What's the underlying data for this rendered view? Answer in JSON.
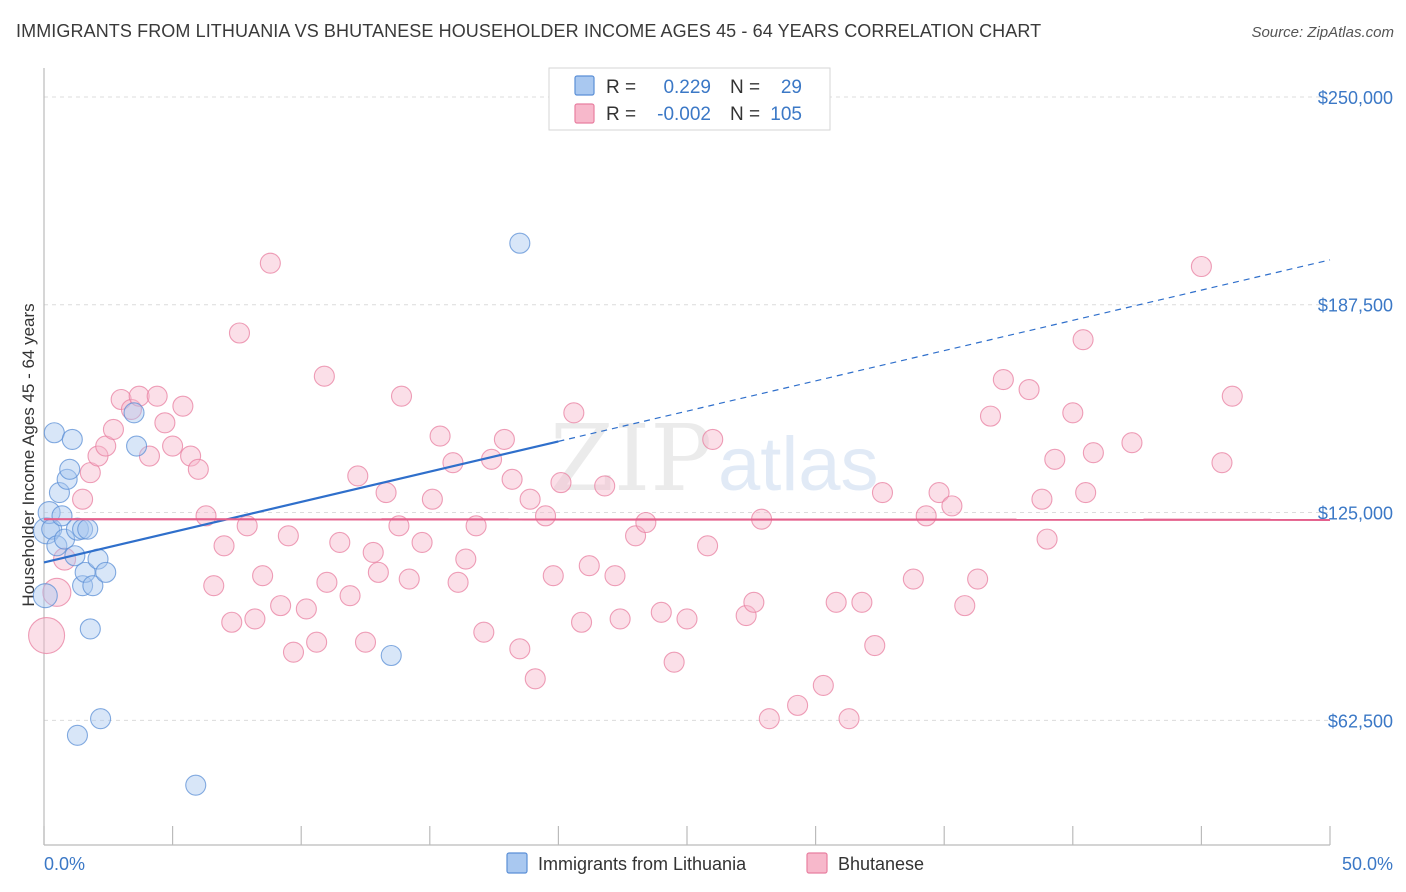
{
  "title": "IMMIGRANTS FROM LITHUANIA VS BHUTANESE HOUSEHOLDER INCOME AGES 45 - 64 YEARS CORRELATION CHART",
  "source": "Source: ZipAtlas.com",
  "watermark": {
    "zip": "ZIP",
    "atlas": "atlas"
  },
  "colors": {
    "lithuania_fill": "#a9c8f0",
    "lithuania_stroke": "#5b8fd6",
    "lithuania_line": "#2f6fcb",
    "bhutanese_fill": "#f7b8cb",
    "bhutanese_stroke": "#e87fa0",
    "bhutanese_line": "#e4608c",
    "axis_text": "#3b78c6"
  },
  "legend": {
    "rows": [
      {
        "r_label": "R =",
        "r_value": "0.229",
        "n_label": "N =",
        "n_value": "29"
      },
      {
        "r_label": "R =",
        "r_value": "-0.002",
        "n_label": "N =",
        "n_value": "105"
      }
    ]
  },
  "chart_data": {
    "type": "scatter",
    "title": "IMMIGRANTS FROM LITHUANIA VS BHUTANESE HOUSEHOLDER INCOME AGES 45 - 64 YEARS CORRELATION CHART",
    "xlabel": "",
    "ylabel": "Householder Income Ages 45 - 64 years",
    "xlim": [
      0,
      50
    ],
    "ylim": [
      25000,
      256000
    ],
    "x_tick_labels": [
      "0.0%",
      "50.0%"
    ],
    "y_ticks": [
      62500,
      125000,
      187500,
      250000
    ],
    "y_tick_labels": [
      "$62,500",
      "$125,000",
      "$187,500",
      "$250,000"
    ],
    "grid": true,
    "series": [
      {
        "name": "Immigrants from Lithuania",
        "r": 0.229,
        "n": 29,
        "trend": {
          "x0": 0,
          "y0": 110000,
          "x1": 50,
          "y1": 201000,
          "solid_until_x": 20
        },
        "points": [
          [
            0.1,
            119500,
            26
          ],
          [
            0.2,
            125000,
            22
          ],
          [
            0.3,
            120000,
            20
          ],
          [
            0.4,
            149000,
            20
          ],
          [
            0.5,
            115000,
            20
          ],
          [
            0.6,
            131000,
            20
          ],
          [
            0.7,
            124000,
            20
          ],
          [
            0.8,
            117000,
            20
          ],
          [
            0.9,
            135000,
            20
          ],
          [
            1.0,
            138000,
            20
          ],
          [
            1.1,
            147000,
            20
          ],
          [
            1.2,
            112000,
            20
          ],
          [
            1.3,
            120000,
            22
          ],
          [
            1.5,
            120000,
            20
          ],
          [
            1.5,
            103000,
            20
          ],
          [
            1.6,
            107000,
            20
          ],
          [
            1.7,
            120000,
            20
          ],
          [
            1.8,
            90000,
            20
          ],
          [
            1.9,
            103000,
            20
          ],
          [
            2.1,
            111000,
            20
          ],
          [
            2.2,
            63000,
            20
          ],
          [
            2.4,
            107000,
            20
          ],
          [
            1.3,
            58000,
            20
          ],
          [
            3.6,
            145000,
            20
          ],
          [
            3.5,
            155000,
            20
          ],
          [
            5.9,
            43000,
            20
          ],
          [
            13.5,
            82000,
            20
          ],
          [
            18.5,
            206000,
            20
          ],
          [
            0.05,
            100000,
            24
          ]
        ]
      },
      {
        "name": "Bhutanese",
        "r": -0.002,
        "n": 105,
        "trend": {
          "x0": 0,
          "y0": 123000,
          "x1": 50,
          "y1": 122800
        },
        "points": [
          [
            0.1,
            88000,
            36
          ],
          [
            0.5,
            101000,
            28
          ],
          [
            0.8,
            111000,
            22
          ],
          [
            1.5,
            129000,
            20
          ],
          [
            1.8,
            137000,
            20
          ],
          [
            2.1,
            142000,
            20
          ],
          [
            2.4,
            145000,
            20
          ],
          [
            2.7,
            150000,
            20
          ],
          [
            3.0,
            159000,
            20
          ],
          [
            3.4,
            156000,
            20
          ],
          [
            3.7,
            160000,
            20
          ],
          [
            4.1,
            142000,
            20
          ],
          [
            4.4,
            160000,
            20
          ],
          [
            4.7,
            152000,
            20
          ],
          [
            5.0,
            145000,
            20
          ],
          [
            5.4,
            157000,
            20
          ],
          [
            5.7,
            142000,
            20
          ],
          [
            6.0,
            138000,
            20
          ],
          [
            6.3,
            124000,
            20
          ],
          [
            6.6,
            103000,
            20
          ],
          [
            7.0,
            115000,
            20
          ],
          [
            7.3,
            92000,
            20
          ],
          [
            7.6,
            179000,
            20
          ],
          [
            7.9,
            121000,
            20
          ],
          [
            8.2,
            93000,
            20
          ],
          [
            8.5,
            106000,
            20
          ],
          [
            8.8,
            200000,
            20
          ],
          [
            9.2,
            97000,
            20
          ],
          [
            9.5,
            118000,
            20
          ],
          [
            9.7,
            83000,
            20
          ],
          [
            10.2,
            96000,
            20
          ],
          [
            10.6,
            86000,
            20
          ],
          [
            10.9,
            166000,
            20
          ],
          [
            11.0,
            104000,
            20
          ],
          [
            11.5,
            116000,
            20
          ],
          [
            11.9,
            100000,
            20
          ],
          [
            12.2,
            136000,
            20
          ],
          [
            12.5,
            86000,
            20
          ],
          [
            12.8,
            113000,
            20
          ],
          [
            13.0,
            107000,
            20
          ],
          [
            13.3,
            131000,
            20
          ],
          [
            13.8,
            121000,
            20
          ],
          [
            13.9,
            160000,
            20
          ],
          [
            14.2,
            105000,
            20
          ],
          [
            14.7,
            116000,
            20
          ],
          [
            15.1,
            129000,
            20
          ],
          [
            15.4,
            148000,
            20
          ],
          [
            15.9,
            140000,
            20
          ],
          [
            16.1,
            104000,
            20
          ],
          [
            16.4,
            111000,
            20
          ],
          [
            16.8,
            121000,
            20
          ],
          [
            17.1,
            89000,
            20
          ],
          [
            17.4,
            141000,
            20
          ],
          [
            17.9,
            147000,
            20
          ],
          [
            18.2,
            135000,
            20
          ],
          [
            18.5,
            84000,
            20
          ],
          [
            18.9,
            129000,
            20
          ],
          [
            19.1,
            75000,
            20
          ],
          [
            19.5,
            124000,
            20
          ],
          [
            19.8,
            106000,
            20
          ],
          [
            20.1,
            134000,
            20
          ],
          [
            20.6,
            155000,
            20
          ],
          [
            20.9,
            92000,
            20
          ],
          [
            21.2,
            109000,
            20
          ],
          [
            21.8,
            133000,
            20
          ],
          [
            22.2,
            106000,
            20
          ],
          [
            22.4,
            93000,
            20
          ],
          [
            23.0,
            118000,
            20
          ],
          [
            23.4,
            122000,
            20
          ],
          [
            24.0,
            95000,
            20
          ],
          [
            24.5,
            80000,
            20
          ],
          [
            25.0,
            93000,
            20
          ],
          [
            25.8,
            115000,
            20
          ],
          [
            27.3,
            94000,
            20
          ],
          [
            27.6,
            98000,
            20
          ],
          [
            27.9,
            123000,
            20
          ],
          [
            28.2,
            63000,
            20
          ],
          [
            29.3,
            67000,
            20
          ],
          [
            30.3,
            73000,
            20
          ],
          [
            30.8,
            98000,
            20
          ],
          [
            31.3,
            63000,
            20
          ],
          [
            31.8,
            98000,
            20
          ],
          [
            32.3,
            85000,
            20
          ],
          [
            32.6,
            131000,
            20
          ],
          [
            33.8,
            105000,
            20
          ],
          [
            34.3,
            124000,
            20
          ],
          [
            34.8,
            131000,
            20
          ],
          [
            35.3,
            127000,
            20
          ],
          [
            35.8,
            97000,
            20
          ],
          [
            36.3,
            105000,
            20
          ],
          [
            36.8,
            154000,
            20
          ],
          [
            37.3,
            165000,
            20
          ],
          [
            38.3,
            162000,
            20
          ],
          [
            38.8,
            129000,
            20
          ],
          [
            39.0,
            117000,
            20
          ],
          [
            39.3,
            141000,
            20
          ],
          [
            40.0,
            155000,
            20
          ],
          [
            40.5,
            131000,
            20
          ],
          [
            40.8,
            143000,
            20
          ],
          [
            40.4,
            177000,
            20
          ],
          [
            42.3,
            146000,
            20
          ],
          [
            45.0,
            199000,
            20
          ],
          [
            45.8,
            140000,
            20
          ],
          [
            46.2,
            160000,
            20
          ],
          [
            26.0,
            147000,
            20
          ]
        ]
      }
    ],
    "legend_entries": [
      "Immigrants from Lithuania",
      "Bhutanese"
    ],
    "legend_position": "bottom-center"
  }
}
